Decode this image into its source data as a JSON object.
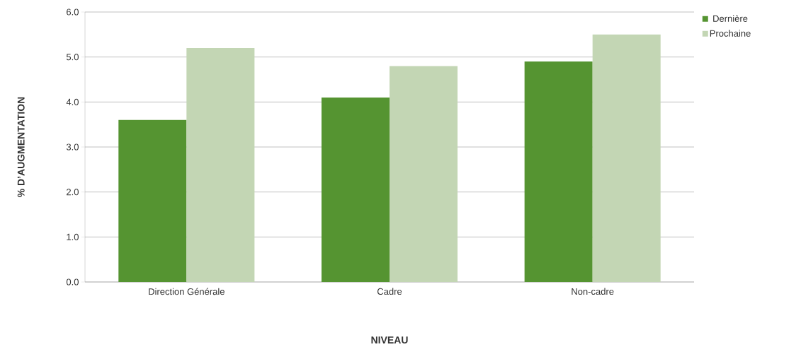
{
  "chart_data": {
    "type": "bar",
    "xlabel": "NIVEAU",
    "ylabel": "% D’AUGMENTATION",
    "categories": [
      "Direction Générale",
      "Cadre",
      "Non-cadre"
    ],
    "series": [
      {
        "name": "Dernière",
        "color": "#559431",
        "values": [
          3.6,
          4.1,
          4.9
        ]
      },
      {
        "name": "Prochaine",
        "color": "#c3d6b4",
        "values": [
          5.2,
          4.8,
          5.5
        ]
      }
    ],
    "ylim": [
      0,
      6
    ],
    "yticks": [
      {
        "value": 0,
        "label": "0.0"
      },
      {
        "value": 1,
        "label": "1.0"
      },
      {
        "value": 2,
        "label": "2.0"
      },
      {
        "value": 3,
        "label": "3.0"
      },
      {
        "value": 4,
        "label": "4.0"
      },
      {
        "value": 5,
        "label": "5.0"
      },
      {
        "value": 6,
        "label": "6.0"
      }
    ],
    "grid": "y",
    "legend": "top right"
  }
}
